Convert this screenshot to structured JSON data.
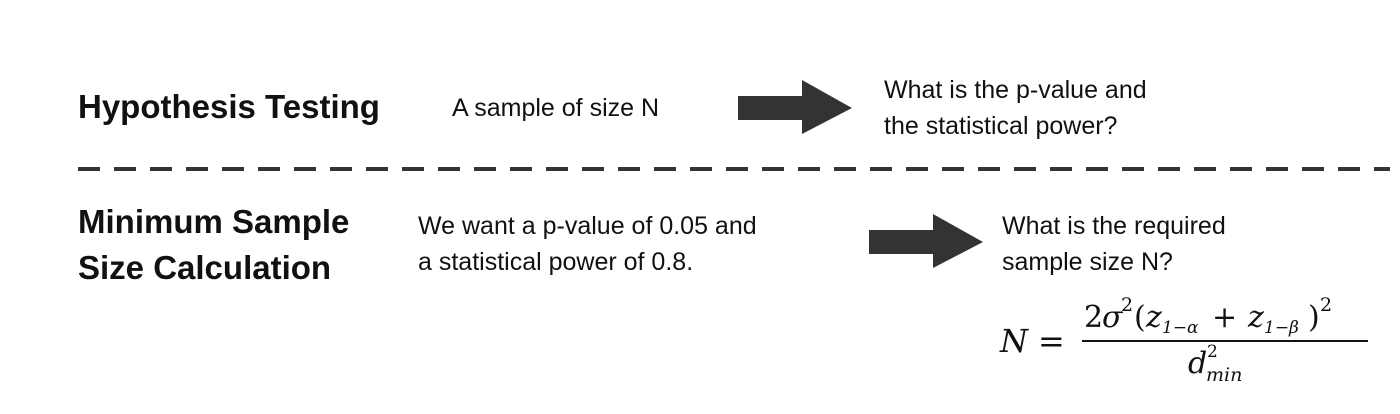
{
  "top_row": {
    "heading": "Hypothesis Testing",
    "input_text": "A sample of size N",
    "output_line1": "What is the p-value and",
    "output_line2": "the statistical power?"
  },
  "bottom_row": {
    "heading_line1": "Minimum Sample",
    "heading_line2": "Size Calculation",
    "input_line1": "We want a p-value of 0.05 and",
    "input_line2": "a statistical power of 0.8.",
    "output_line1": "What is the required",
    "output_line2": "sample size N?"
  },
  "formula": {
    "lhs": "N",
    "equals": "=",
    "numerator": {
      "coefficient": "2",
      "sigma": "σ",
      "sigma_exp": "2",
      "open_paren": "(",
      "z1": "z",
      "z1_sub": "1−α",
      "plus": "+",
      "z2": "z",
      "z2_sub": "1−β",
      "close_paren": ")",
      "outer_exp": "2"
    },
    "denominator": {
      "d": "d",
      "d_sup": "2",
      "d_sub": "min"
    }
  },
  "colors": {
    "text": "#111111",
    "arrow": "#333333",
    "divider": "#333333"
  },
  "icons": {
    "arrow": "right-arrow-icon"
  }
}
